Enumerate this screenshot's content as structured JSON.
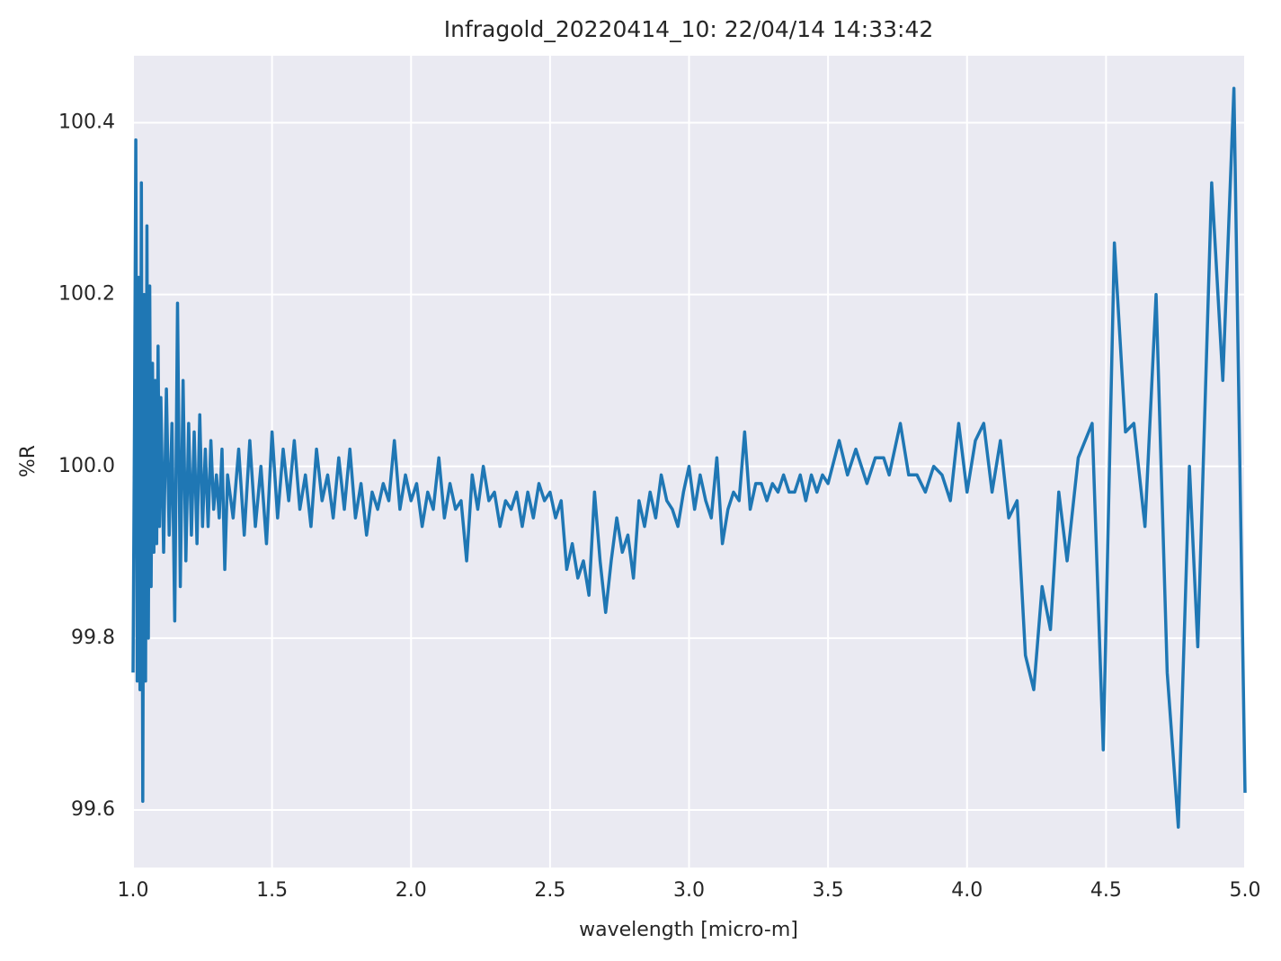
{
  "chart_data": {
    "type": "line",
    "title": "Infragold_20220414_10:  22/04/14 14:33:42",
    "xlabel": "wavelength [micro-m]",
    "ylabel": "%R",
    "color": "#1f77b4",
    "grid": true,
    "xlim": [
      1,
      5
    ],
    "ylim": [
      99.533,
      100.478
    ],
    "xticks": [
      {
        "value": 1,
        "label": "1.0"
      },
      1.5,
      {
        "value": 2,
        "label": "2.0"
      },
      2.5,
      {
        "value": 3,
        "label": "3.0"
      },
      3.5,
      {
        "value": 4,
        "label": "4.0"
      },
      4.5,
      {
        "value": 5,
        "label": "5.0"
      }
    ],
    "yticks": [
      99.6,
      99.8,
      {
        "value": 100,
        "label": "100.0"
      },
      100.2,
      100.4
    ],
    "x": [
      1.0,
      1.005,
      1.01,
      1.015,
      1.02,
      1.025,
      1.03,
      1.035,
      1.04,
      1.045,
      1.05,
      1.055,
      1.06,
      1.065,
      1.07,
      1.075,
      1.08,
      1.085,
      1.09,
      1.095,
      1.1,
      1.11,
      1.12,
      1.13,
      1.14,
      1.15,
      1.16,
      1.17,
      1.18,
      1.19,
      1.2,
      1.21,
      1.22,
      1.23,
      1.24,
      1.25,
      1.26,
      1.27,
      1.28,
      1.29,
      1.3,
      1.31,
      1.32,
      1.33,
      1.34,
      1.36,
      1.38,
      1.4,
      1.42,
      1.44,
      1.46,
      1.48,
      1.5,
      1.52,
      1.54,
      1.56,
      1.58,
      1.6,
      1.62,
      1.64,
      1.66,
      1.68,
      1.7,
      1.72,
      1.74,
      1.76,
      1.78,
      1.8,
      1.82,
      1.84,
      1.86,
      1.88,
      1.9,
      1.92,
      1.94,
      1.96,
      1.98,
      2.0,
      2.02,
      2.04,
      2.06,
      2.08,
      2.1,
      2.12,
      2.14,
      2.16,
      2.18,
      2.2,
      2.22,
      2.24,
      2.26,
      2.28,
      2.3,
      2.32,
      2.34,
      2.36,
      2.38,
      2.4,
      2.42,
      2.44,
      2.46,
      2.48,
      2.5,
      2.52,
      2.54,
      2.56,
      2.58,
      2.6,
      2.62,
      2.64,
      2.66,
      2.68,
      2.7,
      2.72,
      2.74,
      2.76,
      2.78,
      2.8,
      2.82,
      2.84,
      2.86,
      2.88,
      2.9,
      2.92,
      2.94,
      2.96,
      2.98,
      3.0,
      3.02,
      3.04,
      3.06,
      3.08,
      3.1,
      3.12,
      3.14,
      3.16,
      3.18,
      3.2,
      3.22,
      3.24,
      3.26,
      3.28,
      3.3,
      3.32,
      3.34,
      3.36,
      3.38,
      3.4,
      3.42,
      3.44,
      3.46,
      3.48,
      3.5,
      3.54,
      3.57,
      3.6,
      3.64,
      3.67,
      3.7,
      3.72,
      3.76,
      3.79,
      3.82,
      3.85,
      3.88,
      3.91,
      3.94,
      3.97,
      4.0,
      4.03,
      4.06,
      4.09,
      4.12,
      4.15,
      4.18,
      4.21,
      4.24,
      4.27,
      4.3,
      4.33,
      4.36,
      4.4,
      4.45,
      4.49,
      4.53,
      4.57,
      4.6,
      4.64,
      4.68,
      4.72,
      4.76,
      4.8,
      4.83,
      4.88,
      4.92,
      4.96,
      5.0
    ],
    "values": [
      99.76,
      100.04,
      100.38,
      99.75,
      100.22,
      99.74,
      100.33,
      99.61,
      100.2,
      99.75,
      100.28,
      99.8,
      100.21,
      99.86,
      100.12,
      99.9,
      100.1,
      99.91,
      100.14,
      99.93,
      100.08,
      99.9,
      100.09,
      99.92,
      100.05,
      99.82,
      100.19,
      99.86,
      100.1,
      99.89,
      100.05,
      99.92,
      100.04,
      99.91,
      100.06,
      99.93,
      100.02,
      99.93,
      100.03,
      99.95,
      99.99,
      99.94,
      100.02,
      99.88,
      99.99,
      99.94,
      100.02,
      99.92,
      100.03,
      99.93,
      100.0,
      99.91,
      100.04,
      99.94,
      100.02,
      99.96,
      100.03,
      99.95,
      99.99,
      99.93,
      100.02,
      99.96,
      99.99,
      99.94,
      100.01,
      99.95,
      100.02,
      99.94,
      99.98,
      99.92,
      99.97,
      99.95,
      99.98,
      99.96,
      100.03,
      99.95,
      99.99,
      99.96,
      99.98,
      99.93,
      99.97,
      99.95,
      100.01,
      99.94,
      99.98,
      99.95,
      99.96,
      99.89,
      99.99,
      99.95,
      100.0,
      99.96,
      99.97,
      99.93,
      99.96,
      99.95,
      99.97,
      99.93,
      99.97,
      99.94,
      99.98,
      99.96,
      99.97,
      99.94,
      99.96,
      99.88,
      99.91,
      99.87,
      99.89,
      99.85,
      99.97,
      99.89,
      99.83,
      99.89,
      99.94,
      99.9,
      99.92,
      99.87,
      99.96,
      99.93,
      99.97,
      99.94,
      99.99,
      99.96,
      99.95,
      99.93,
      99.97,
      100.0,
      99.95,
      99.99,
      99.96,
      99.94,
      100.01,
      99.91,
      99.95,
      99.97,
      99.96,
      100.04,
      99.95,
      99.98,
      99.98,
      99.96,
      99.98,
      99.97,
      99.99,
      99.97,
      99.97,
      99.99,
      99.96,
      99.99,
      99.97,
      99.99,
      99.98,
      100.03,
      99.99,
      100.02,
      99.98,
      100.01,
      100.01,
      99.99,
      100.05,
      99.99,
      99.99,
      99.97,
      100.0,
      99.99,
      99.96,
      100.05,
      99.97,
      100.03,
      100.05,
      99.97,
      100.03,
      99.94,
      99.96,
      99.78,
      99.74,
      99.86,
      99.81,
      99.97,
      99.89,
      100.01,
      100.05,
      99.67,
      100.26,
      100.04,
      100.05,
      99.93,
      100.2,
      99.76,
      99.58,
      100.0,
      99.79,
      100.33,
      100.1,
      100.44,
      99.62
    ]
  }
}
